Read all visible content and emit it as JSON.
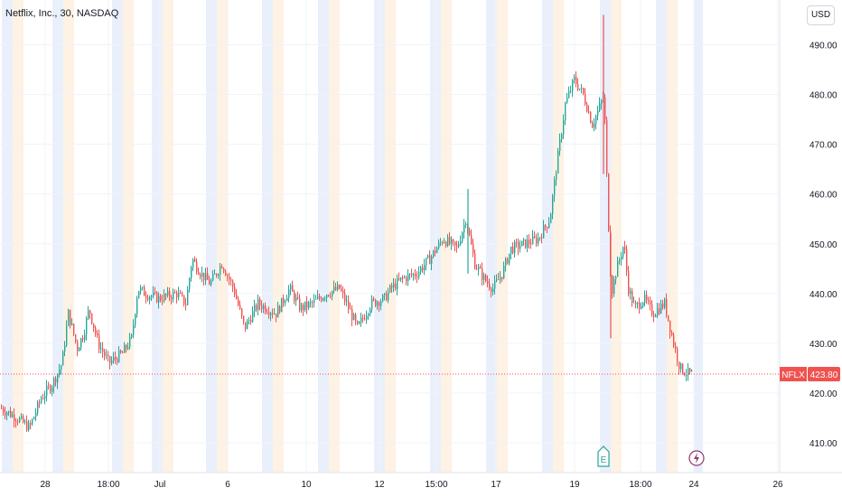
{
  "header": {
    "title": "Netflix, Inc., 30, NASDAQ"
  },
  "currency_button": {
    "label": "USD"
  },
  "colors": {
    "up": "#26a69a",
    "down": "#ef5350",
    "premarket_band": "#fdf2e3",
    "afterhours_band": "#eaf0fb",
    "grid": "#f0f3fa",
    "last_price_line": "#ef5350",
    "earnings_marker": "#26a69a",
    "dividend_marker": "#8e3b6b"
  },
  "last_price": {
    "ticker": "NFLX",
    "value": "423.80"
  },
  "markers": {
    "earnings": {
      "label": "E",
      "icon": "earnings-icon"
    },
    "event": {
      "icon": "lightning-icon"
    }
  },
  "chart_data": {
    "type": "candlestick",
    "title": "Netflix, Inc., 30, NASDAQ",
    "ylim": [
      404,
      499
    ],
    "y_ticks": [
      "410.00",
      "420.00",
      "430.00",
      "440.00",
      "450.00",
      "460.00",
      "470.00",
      "480.00",
      "490.00"
    ],
    "x_ticks": [
      "28",
      "18:00",
      "Jul",
      "6",
      "10",
      "12",
      "15:00",
      "17",
      "19",
      "18:00",
      "24",
      "26"
    ],
    "grid": true,
    "legend": "none",
    "price_waypoints": [
      [
        0,
        417
      ],
      [
        18,
        415
      ],
      [
        32,
        413
      ],
      [
        45,
        419
      ],
      [
        58,
        422
      ],
      [
        68,
        426
      ],
      [
        75,
        436
      ],
      [
        85,
        429
      ],
      [
        92,
        432
      ],
      [
        98,
        437
      ],
      [
        108,
        430
      ],
      [
        120,
        426
      ],
      [
        135,
        428
      ],
      [
        145,
        431
      ],
      [
        152,
        441
      ],
      [
        160,
        440
      ],
      [
        175,
        439
      ],
      [
        195,
        440
      ],
      [
        205,
        438
      ],
      [
        212,
        447
      ],
      [
        222,
        444
      ],
      [
        232,
        442
      ],
      [
        245,
        446
      ],
      [
        258,
        441
      ],
      [
        270,
        433
      ],
      [
        285,
        438
      ],
      [
        295,
        437
      ],
      [
        305,
        436
      ],
      [
        320,
        441
      ],
      [
        332,
        437
      ],
      [
        345,
        438
      ],
      [
        360,
        440
      ],
      [
        375,
        441
      ],
      [
        388,
        436
      ],
      [
        395,
        433
      ],
      [
        410,
        438
      ],
      [
        425,
        439
      ],
      [
        432,
        441
      ],
      [
        445,
        443
      ],
      [
        460,
        444
      ],
      [
        475,
        447
      ],
      [
        490,
        451
      ],
      [
        505,
        449
      ],
      [
        515,
        455
      ],
      [
        525,
        446
      ],
      [
        535,
        443
      ],
      [
        545,
        441
      ],
      [
        555,
        444
      ],
      [
        565,
        449
      ],
      [
        580,
        450
      ],
      [
        595,
        451
      ],
      [
        608,
        455
      ],
      [
        615,
        465
      ],
      [
        625,
        478
      ],
      [
        635,
        483
      ],
      [
        645,
        480
      ],
      [
        655,
        474
      ],
      [
        662,
        477
      ],
      [
        668,
        480
      ],
      [
        672,
        458
      ],
      [
        676,
        440
      ],
      [
        682,
        445
      ],
      [
        690,
        450
      ],
      [
        695,
        441
      ],
      [
        702,
        437
      ],
      [
        712,
        439
      ],
      [
        722,
        436
      ],
      [
        735,
        438
      ],
      [
        745,
        430
      ],
      [
        752,
        425
      ],
      [
        760,
        424
      ],
      [
        766,
        423.8
      ]
    ],
    "spikes": [
      {
        "x": 668,
        "high": 496,
        "low": 464,
        "dir": "down"
      },
      {
        "x": 518,
        "high": 461,
        "low": 444,
        "dir": "up"
      },
      {
        "x": 676,
        "high": 452,
        "low": 431,
        "dir": "down"
      }
    ]
  }
}
